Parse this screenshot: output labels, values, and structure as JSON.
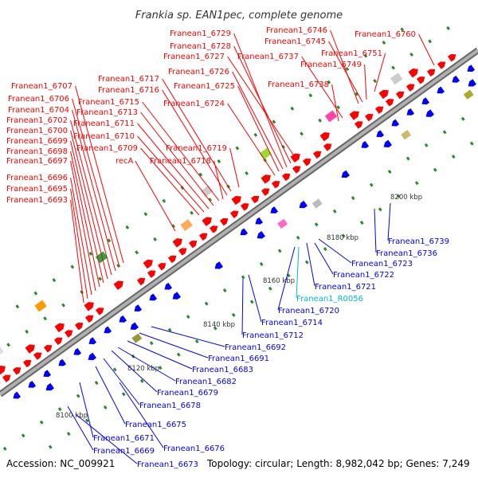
{
  "title": "Frankia sp. EAN1pec, complete genome",
  "footer": {
    "accession": "Accession: NC_009921",
    "topology": "Topology: circular; Length: 8,982,042 bp; Genes: 7,249"
  },
  "colors": {
    "forward": "#ff0000",
    "reverse": "#0000ff",
    "rna": "#00bbcc",
    "backbone": "#888888"
  },
  "scale_marks": [
    "8100 kbp",
    "8120 kbp",
    "8140 kbp",
    "8160 kbp",
    "8180 kbp",
    "8200 kbp"
  ],
  "top_labels": [
    "Franean1_6729",
    "Franean1_6728",
    "Franean1_6727",
    "Franean1_6726",
    "Franean1_6725",
    "Franean1_6724",
    "Franean1_6746",
    "Franean1_6745",
    "Franean1_6737",
    "Franean1_6749",
    "Franean1_6751",
    "Franean1_6738",
    "Franean1_6760",
    "Franean1_6717",
    "Franean1_6716",
    "Franean1_6715",
    "Franean1_6713",
    "Franean1_6711",
    "Franean1_6710",
    "Franean1_6709",
    "recA",
    "Franean1_6719",
    "Franean1_6718",
    "Franean1_6707",
    "Franean1_6706",
    "Franean1_6704",
    "Franean1_6702",
    "Franean1_6700",
    "Franean1_6699",
    "Franean1_6698",
    "Franean1_6697",
    "Franean1_6696",
    "Franean1_6695",
    "Franean1_6693"
  ],
  "bottom_labels": [
    "Franean1_6739",
    "Franean1_6736",
    "Franean1_6723",
    "Franean1_6722",
    "Franean1_6721",
    "Franean1_R0056",
    "Franean1_6720",
    "Franean1_6714",
    "Franean1_6712",
    "Franean1_6692",
    "Franean1_6691",
    "Franean1_6683",
    "Franean1_6682",
    "Franean1_6679",
    "Franean1_6678",
    "Franean1_6675",
    "Franean1_6671",
    "Franean1_6669",
    "Franean1_6676",
    "Franean1_6673"
  ]
}
